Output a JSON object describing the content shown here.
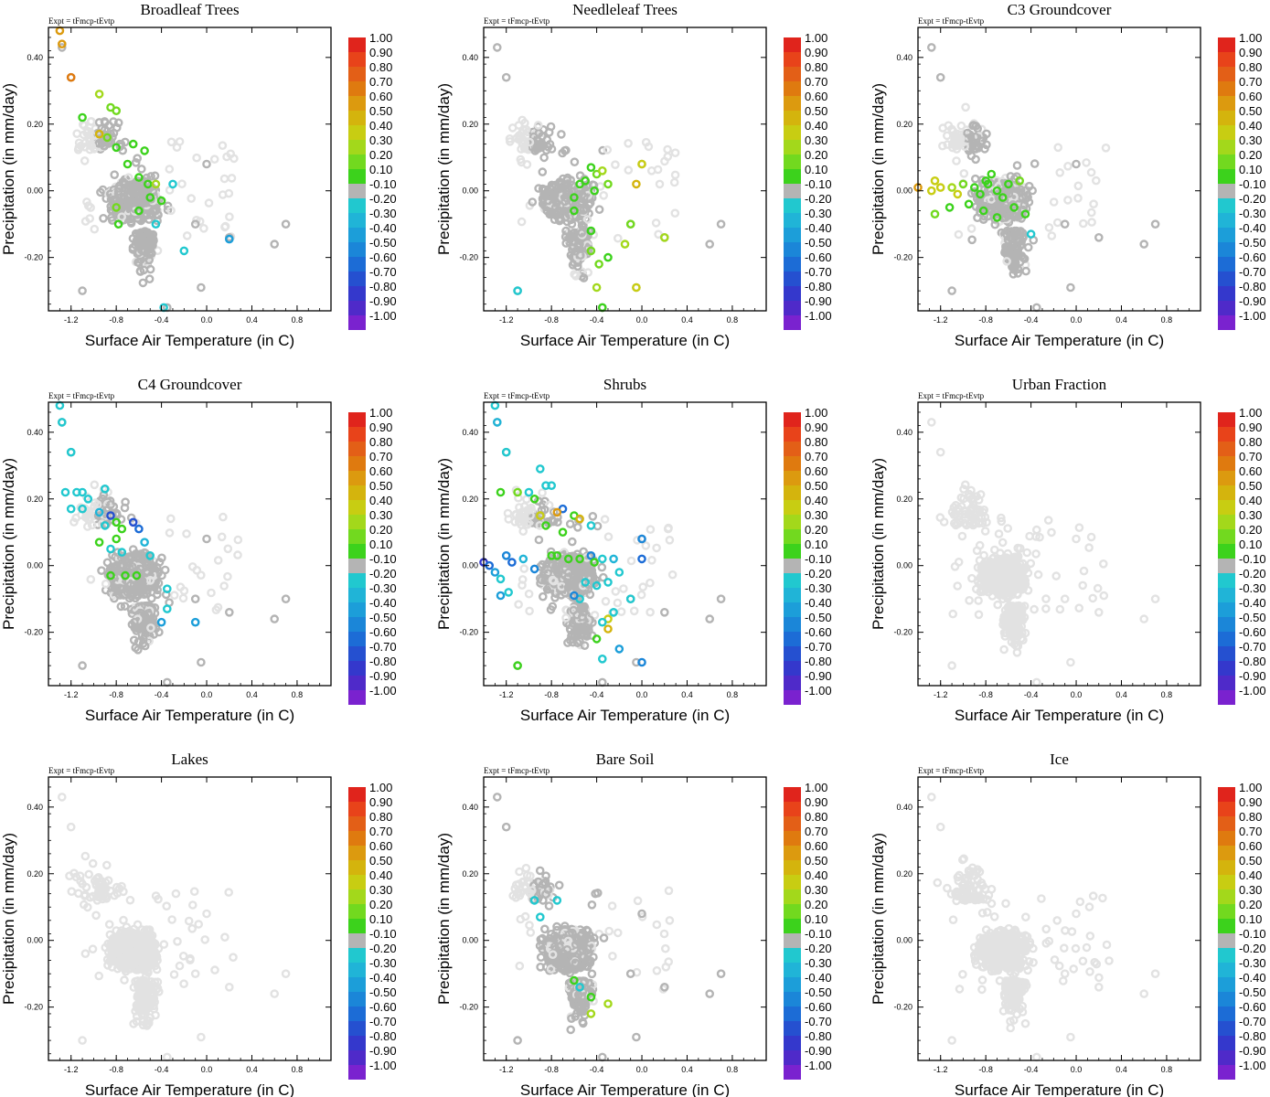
{
  "figure": {
    "expt_label": "Expt = tFmcp-tEvtp",
    "xlabel": "Surface Air Temperature (in C)",
    "ylabel": "Precipitation (in mm/day)",
    "colorbar": {
      "labels": [
        "1.00",
        "0.90",
        "0.80",
        "0.70",
        "0.60",
        "0.50",
        "0.40",
        "0.30",
        "0.20",
        "0.10",
        "-0.10",
        "-0.20",
        "-0.30",
        "-0.40",
        "-0.50",
        "-0.60",
        "-0.70",
        "-0.80",
        "-0.90",
        "-1.00"
      ],
      "colors": [
        "#e0241c",
        "#e8431a",
        "#e35f17",
        "#df7a0f",
        "#dc9a0f",
        "#d4b40d",
        "#c8cd12",
        "#a3d81b",
        "#72d91f",
        "#3cd21c",
        "#b4b4b4",
        "#21c8cf",
        "#20b4d7",
        "#1c9ed9",
        "#1b86d8",
        "#1c6cd6",
        "#2550d0",
        "#3438cc",
        "#4f2ac9",
        "#7a22cf"
      ]
    }
  },
  "chart_data": [
    {
      "type": "scatter",
      "title": "Broadleaf Trees",
      "xlim": [
        -1.4,
        1.1
      ],
      "ylim": [
        -0.36,
        0.49
      ],
      "xticks": [
        "-1.2",
        "-0.8",
        "-0.4",
        "0.0",
        "0.4",
        "0.8"
      ],
      "yticks": [
        "0.40",
        "0.20",
        "0.00",
        "-0.20"
      ],
      "pattern": "mixed",
      "seed": 11,
      "highlights": [
        [
          -1.3,
          0.48,
          "#dc9a0f"
        ],
        [
          -1.28,
          0.44,
          "#dc9a0f"
        ],
        [
          -1.2,
          0.34,
          "#df7a0f"
        ],
        [
          -1.1,
          0.22,
          "#3cd21c"
        ],
        [
          -0.95,
          0.29,
          "#a3d81b"
        ],
        [
          -0.85,
          0.25,
          "#72d91f"
        ],
        [
          -0.8,
          0.24,
          "#72d91f"
        ],
        [
          -0.95,
          0.17,
          "#d4b40d"
        ],
        [
          -0.88,
          0.16,
          "#72d91f"
        ],
        [
          -0.8,
          0.13,
          "#3cd21c"
        ],
        [
          -0.65,
          0.14,
          "#3cd21c"
        ],
        [
          -0.55,
          0.12,
          "#3cd21c"
        ],
        [
          -0.7,
          0.08,
          "#3cd21c"
        ],
        [
          -0.6,
          0.04,
          "#3cd21c"
        ],
        [
          -0.52,
          0.02,
          "#3cd21c"
        ],
        [
          -0.45,
          0.02,
          "#a3d81b"
        ],
        [
          -0.4,
          -0.03,
          "#3cd21c"
        ],
        [
          -0.5,
          -0.02,
          "#3cd21c"
        ],
        [
          -0.6,
          -0.06,
          "#3cd21c"
        ],
        [
          -0.8,
          -0.05,
          "#72d91f"
        ],
        [
          -0.78,
          -0.1,
          "#3cd21c"
        ],
        [
          -0.3,
          0.02,
          "#21c8cf"
        ],
        [
          0.2,
          -0.145,
          "#1c9ed9"
        ],
        [
          -0.2,
          -0.18,
          "#21c8cf"
        ],
        [
          -0.45,
          -0.1,
          "#21c8cf"
        ],
        [
          -0.38,
          -0.35,
          "#21c8cf"
        ]
      ]
    },
    {
      "type": "scatter",
      "title": "Needleleaf Trees",
      "xlim": [
        -1.4,
        1.1
      ],
      "ylim": [
        -0.36,
        0.49
      ],
      "xticks": [
        "-1.2",
        "-0.8",
        "-0.4",
        "0.0",
        "0.4",
        "0.8"
      ],
      "yticks": [
        "0.40",
        "0.20",
        "0.00",
        "-0.20"
      ],
      "pattern": "mixed",
      "seed": 23,
      "highlights": [
        [
          -0.45,
          0.07,
          "#3cd21c"
        ],
        [
          -0.4,
          0.05,
          "#72d91f"
        ],
        [
          -0.35,
          0.06,
          "#a3d81b"
        ],
        [
          -0.5,
          0.03,
          "#3cd21c"
        ],
        [
          -0.42,
          0.0,
          "#3cd21c"
        ],
        [
          -0.6,
          -0.02,
          "#3cd21c"
        ],
        [
          -0.55,
          0.02,
          "#3cd21c"
        ],
        [
          -0.3,
          0.02,
          "#72d91f"
        ],
        [
          0.0,
          0.08,
          "#c8cd12"
        ],
        [
          -0.05,
          0.02,
          "#d4b40d"
        ],
        [
          -0.1,
          -0.1,
          "#72d91f"
        ],
        [
          -0.15,
          -0.16,
          "#a3d81b"
        ],
        [
          0.2,
          -0.14,
          "#a3d81b"
        ],
        [
          -0.45,
          -0.18,
          "#72d91f"
        ],
        [
          -0.38,
          -0.22,
          "#72d91f"
        ],
        [
          -0.3,
          -0.2,
          "#3cd21c"
        ],
        [
          -0.4,
          -0.29,
          "#a3d81b"
        ],
        [
          -0.45,
          -0.12,
          "#3cd21c"
        ],
        [
          -0.05,
          -0.29,
          "#c8cd12"
        ],
        [
          -1.1,
          -0.3,
          "#21c8cf"
        ],
        [
          -0.6,
          -0.06,
          "#3cd21c"
        ],
        [
          -0.35,
          -0.35,
          "#3cd21c"
        ]
      ]
    },
    {
      "type": "scatter",
      "title": "C3 Groundcover",
      "xlim": [
        -1.4,
        1.1
      ],
      "ylim": [
        -0.36,
        0.49
      ],
      "xticks": [
        "-1.2",
        "-0.8",
        "-0.4",
        "0.0",
        "0.4",
        "0.8"
      ],
      "yticks": [
        "0.40",
        "0.20",
        "0.00",
        "-0.20"
      ],
      "pattern": "mixed",
      "seed": 37,
      "highlights": [
        [
          -1.4,
          0.01,
          "#dc9a0f"
        ],
        [
          -1.25,
          0.03,
          "#c8cd12"
        ],
        [
          -1.2,
          0.01,
          "#c8cd12"
        ],
        [
          -1.28,
          0.0,
          "#c8cd12"
        ],
        [
          -1.1,
          0.01,
          "#a3d81b"
        ],
        [
          -1.05,
          -0.01,
          "#c8cd12"
        ],
        [
          -1.0,
          0.02,
          "#72d91f"
        ],
        [
          -0.9,
          0.01,
          "#3cd21c"
        ],
        [
          -0.85,
          -0.01,
          "#3cd21c"
        ],
        [
          -0.8,
          0.03,
          "#3cd21c"
        ],
        [
          -0.75,
          0.05,
          "#3cd21c"
        ],
        [
          -0.7,
          0.0,
          "#3cd21c"
        ],
        [
          -0.65,
          -0.02,
          "#3cd21c"
        ],
        [
          -0.6,
          0.02,
          "#3cd21c"
        ],
        [
          -0.95,
          -0.04,
          "#3cd21c"
        ],
        [
          -1.12,
          -0.05,
          "#3cd21c"
        ],
        [
          -1.25,
          -0.07,
          "#72d91f"
        ],
        [
          -0.82,
          -0.06,
          "#3cd21c"
        ],
        [
          -0.55,
          -0.05,
          "#3cd21c"
        ],
        [
          -0.7,
          -0.08,
          "#3cd21c"
        ],
        [
          -0.5,
          0.03,
          "#72d91f"
        ],
        [
          -0.45,
          -0.07,
          "#3cd21c"
        ],
        [
          -0.4,
          -0.13,
          "#21c8cf"
        ],
        [
          -0.78,
          0.02,
          "#3cd21c"
        ]
      ]
    },
    {
      "type": "scatter",
      "title": "C4 Groundcover",
      "xlim": [
        -1.4,
        1.1
      ],
      "ylim": [
        -0.36,
        0.49
      ],
      "xticks": [
        "-1.2",
        "-0.8",
        "-0.4",
        "0.0",
        "0.4",
        "0.8"
      ],
      "yticks": [
        "0.40",
        "0.20",
        "0.00",
        "-0.20"
      ],
      "pattern": "mixed",
      "seed": 41,
      "highlights": [
        [
          -1.3,
          0.48,
          "#21c8cf"
        ],
        [
          -1.28,
          0.43,
          "#21c8cf"
        ],
        [
          -1.2,
          0.34,
          "#21c8cf"
        ],
        [
          -1.25,
          0.22,
          "#21c8cf"
        ],
        [
          -1.15,
          0.22,
          "#21c8cf"
        ],
        [
          -1.1,
          0.22,
          "#21c8cf"
        ],
        [
          -1.05,
          0.2,
          "#21c8cf"
        ],
        [
          -0.9,
          0.23,
          "#21c8cf"
        ],
        [
          -1.2,
          0.17,
          "#21c8cf"
        ],
        [
          -1.1,
          0.17,
          "#21c8cf"
        ],
        [
          -0.95,
          0.16,
          "#20b4d7"
        ],
        [
          -0.85,
          0.15,
          "#2550d0"
        ],
        [
          -0.9,
          0.12,
          "#21c8cf"
        ],
        [
          -0.8,
          0.13,
          "#3cd21c"
        ],
        [
          -0.75,
          0.11,
          "#3cd21c"
        ],
        [
          -0.65,
          0.13,
          "#2550d0"
        ],
        [
          -0.6,
          0.11,
          "#1c6cd6"
        ],
        [
          -0.8,
          0.08,
          "#3cd21c"
        ],
        [
          -0.95,
          0.07,
          "#3cd21c"
        ],
        [
          -0.85,
          0.05,
          "#21c8cf"
        ],
        [
          -0.75,
          0.04,
          "#21c8cf"
        ],
        [
          -0.55,
          0.07,
          "#20b4d7"
        ],
        [
          -0.5,
          0.03,
          "#21c8cf"
        ],
        [
          -0.72,
          -0.03,
          "#3cd21c"
        ],
        [
          -0.62,
          -0.03,
          "#3cd21c"
        ],
        [
          -0.85,
          -0.03,
          "#3cd21c"
        ],
        [
          -0.35,
          -0.13,
          "#21c8cf"
        ],
        [
          -0.4,
          -0.17,
          "#1c9ed9"
        ],
        [
          -0.1,
          -0.17,
          "#1c9ed9"
        ],
        [
          -0.35,
          -0.07,
          "#21c8cf"
        ]
      ]
    },
    {
      "type": "scatter",
      "title": "Shrubs",
      "xlim": [
        -1.4,
        1.1
      ],
      "ylim": [
        -0.36,
        0.49
      ],
      "xticks": [
        "-1.2",
        "-0.8",
        "-0.4",
        "0.0",
        "0.4",
        "0.8"
      ],
      "yticks": [
        "0.40",
        "0.20",
        "0.00",
        "-0.20"
      ],
      "pattern": "mixed",
      "seed": 53,
      "highlights": [
        [
          -1.3,
          0.48,
          "#21c8cf"
        ],
        [
          -1.28,
          0.43,
          "#20b4d7"
        ],
        [
          -1.2,
          0.34,
          "#21c8cf"
        ],
        [
          -1.25,
          0.22,
          "#3cd21c"
        ],
        [
          -1.1,
          0.22,
          "#72d91f"
        ],
        [
          -1.0,
          0.22,
          "#21c8cf"
        ],
        [
          -0.9,
          0.29,
          "#21c8cf"
        ],
        [
          -0.85,
          0.24,
          "#21c8cf"
        ],
        [
          -0.8,
          0.24,
          "#21c8cf"
        ],
        [
          -0.95,
          0.2,
          "#3cd21c"
        ],
        [
          -0.9,
          0.15,
          "#c8cd12"
        ],
        [
          -0.85,
          0.12,
          "#3cd21c"
        ],
        [
          -0.7,
          0.17,
          "#1c6cd6"
        ],
        [
          -0.75,
          0.16,
          "#dc9a0f"
        ],
        [
          -0.6,
          0.15,
          "#3cd21c"
        ],
        [
          -0.55,
          0.14,
          "#d4b40d"
        ],
        [
          -0.45,
          0.12,
          "#21c8cf"
        ],
        [
          -0.7,
          0.1,
          "#3cd21c"
        ],
        [
          -1.4,
          0.01,
          "#3438cc"
        ],
        [
          -1.35,
          0.0,
          "#1c6cd6"
        ],
        [
          -1.3,
          -0.02,
          "#1c9ed9"
        ],
        [
          -1.2,
          0.03,
          "#1b86d8"
        ],
        [
          -1.15,
          0.01,
          "#1c6cd6"
        ],
        [
          -1.05,
          0.02,
          "#20b4d7"
        ],
        [
          -0.95,
          -0.01,
          "#1b86d8"
        ],
        [
          -1.25,
          -0.04,
          "#21c8cf"
        ],
        [
          -1.18,
          -0.08,
          "#21c8cf"
        ],
        [
          -1.25,
          -0.09,
          "#1c9ed9"
        ],
        [
          -0.8,
          0.03,
          "#3cd21c"
        ],
        [
          -0.75,
          0.03,
          "#3cd21c"
        ],
        [
          -0.65,
          0.02,
          "#3cd21c"
        ],
        [
          -0.55,
          0.02,
          "#3cd21c"
        ],
        [
          -0.45,
          0.03,
          "#1b86d8"
        ],
        [
          -0.42,
          0.01,
          "#3cd21c"
        ],
        [
          -0.35,
          0.02,
          "#21c8cf"
        ],
        [
          -0.25,
          0.02,
          "#20b4d7"
        ],
        [
          -0.2,
          -0.02,
          "#21c8cf"
        ],
        [
          0.0,
          0.02,
          "#1c6cd6"
        ],
        [
          0.0,
          0.08,
          "#1b86d8"
        ],
        [
          -0.1,
          -0.1,
          "#21c8cf"
        ],
        [
          -0.55,
          -0.1,
          "#21c8cf"
        ],
        [
          -0.5,
          -0.05,
          "#21c8cf"
        ],
        [
          -0.4,
          -0.06,
          "#21c8cf"
        ],
        [
          -0.3,
          -0.05,
          "#21c8cf"
        ],
        [
          -0.6,
          -0.09,
          "#1b86d8"
        ],
        [
          -0.3,
          -0.16,
          "#c8cd12"
        ],
        [
          -0.35,
          -0.17,
          "#21c8cf"
        ],
        [
          -0.3,
          -0.19,
          "#d4b40d"
        ],
        [
          -0.25,
          -0.14,
          "#21c8cf"
        ],
        [
          -0.4,
          -0.22,
          "#3cd21c"
        ],
        [
          -0.35,
          -0.28,
          "#21c8cf"
        ],
        [
          -0.2,
          -0.25,
          "#1c9ed9"
        ],
        [
          0.0,
          -0.29,
          "#1b86d8"
        ],
        [
          -1.1,
          -0.3,
          "#3cd21c"
        ]
      ]
    },
    {
      "type": "scatter",
      "title": "Urban Fraction",
      "xlim": [
        -1.4,
        1.1
      ],
      "ylim": [
        -0.36,
        0.49
      ],
      "xticks": [
        "-1.2",
        "-0.8",
        "-0.4",
        "0.0",
        "0.4",
        "0.8"
      ],
      "yticks": [
        "0.40",
        "0.20",
        "0.00",
        "-0.20"
      ],
      "pattern": "light",
      "seed": 67,
      "highlights": []
    },
    {
      "type": "scatter",
      "title": "Lakes",
      "xlim": [
        -1.4,
        1.1
      ],
      "ylim": [
        -0.36,
        0.49
      ],
      "xticks": [
        "-1.2",
        "-0.8",
        "-0.4",
        "0.0",
        "0.4",
        "0.8"
      ],
      "yticks": [
        "0.40",
        "0.20",
        "0.00",
        "-0.20"
      ],
      "pattern": "light",
      "seed": 71,
      "highlights": []
    },
    {
      "type": "scatter",
      "title": "Bare Soil",
      "xlim": [
        -1.4,
        1.1
      ],
      "ylim": [
        -0.36,
        0.49
      ],
      "xticks": [
        "-1.2",
        "-0.8",
        "-0.4",
        "0.0",
        "0.4",
        "0.8"
      ],
      "yticks": [
        "0.40",
        "0.20",
        "0.00",
        "-0.20"
      ],
      "pattern": "mixed",
      "seed": 83,
      "highlights": [
        [
          -0.9,
          0.07,
          "#21c8cf"
        ],
        [
          -0.95,
          0.12,
          "#21c8cf"
        ],
        [
          -0.75,
          0.12,
          "#21c8cf"
        ],
        [
          -0.45,
          -0.17,
          "#3cd21c"
        ],
        [
          -0.3,
          -0.19,
          "#a3d81b"
        ],
        [
          -0.45,
          -0.22,
          "#a3d81b"
        ],
        [
          -0.6,
          -0.12,
          "#3cd21c"
        ],
        [
          -0.55,
          -0.14,
          "#21c8cf"
        ]
      ]
    },
    {
      "type": "scatter",
      "title": "Ice",
      "xlim": [
        -1.4,
        1.1
      ],
      "ylim": [
        -0.36,
        0.49
      ],
      "xticks": [
        "-1.2",
        "-0.8",
        "-0.4",
        "0.0",
        "0.4",
        "0.8"
      ],
      "yticks": [
        "0.40",
        "0.20",
        "0.00",
        "-0.20"
      ],
      "pattern": "light",
      "seed": 97,
      "highlights": []
    }
  ]
}
